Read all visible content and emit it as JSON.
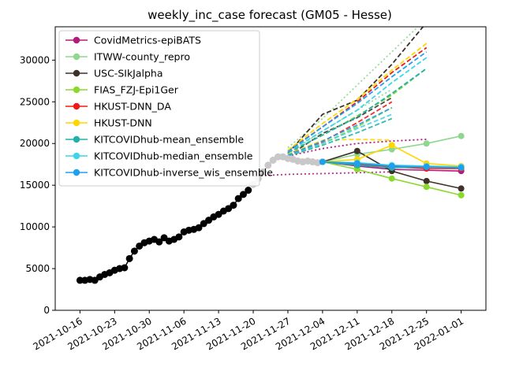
{
  "chart_data": {
    "type": "line",
    "title": "weekly_inc_case forecast (GM05 - Hesse)",
    "xlabel": "",
    "ylabel": "",
    "x_ticks": [
      "2021-10-16",
      "2021-10-23",
      "2021-10-30",
      "2021-11-06",
      "2021-11-13",
      "2021-11-20",
      "2021-11-27",
      "2021-12-04",
      "2021-12-11",
      "2021-12-18",
      "2021-12-25",
      "2022-01-01"
    ],
    "y_ticks": [
      0,
      5000,
      10000,
      15000,
      20000,
      25000,
      30000
    ],
    "xlim": [
      "2021-10-11",
      "2022-01-06"
    ],
    "ylim": [
      0,
      34000
    ],
    "legend_position": "top-left",
    "observed": {
      "color": "#000000",
      "x": [
        "2021-10-16",
        "2021-10-17",
        "2021-10-18",
        "2021-10-19",
        "2021-10-20",
        "2021-10-21",
        "2021-10-22",
        "2021-10-23",
        "2021-10-24",
        "2021-10-25",
        "2021-10-26",
        "2021-10-27",
        "2021-10-28",
        "2021-10-29",
        "2021-10-30",
        "2021-10-31",
        "2021-11-01",
        "2021-11-02",
        "2021-11-03",
        "2021-11-04",
        "2021-11-05",
        "2021-11-06",
        "2021-11-07",
        "2021-11-08",
        "2021-11-09",
        "2021-11-10",
        "2021-11-11",
        "2021-11-12",
        "2021-11-13",
        "2021-11-14",
        "2021-11-15",
        "2021-11-16",
        "2021-11-17",
        "2021-11-18",
        "2021-11-19"
      ],
      "y": [
        3600,
        3600,
        3700,
        3600,
        4000,
        4300,
        4500,
        4800,
        5000,
        5100,
        6200,
        7100,
        7700,
        8100,
        8300,
        8500,
        8200,
        8700,
        8300,
        8500,
        8800,
        9400,
        9600,
        9700,
        9900,
        10400,
        10800,
        11200,
        11500,
        11900,
        12200,
        12600,
        13400,
        13900,
        14400
      ]
    },
    "observed_recent": {
      "color": "#c8c8c8",
      "x": [
        "2021-11-20",
        "2021-11-21",
        "2021-11-22",
        "2021-11-23",
        "2021-11-24",
        "2021-11-25",
        "2021-11-26",
        "2021-11-27",
        "2021-11-28",
        "2021-11-29",
        "2021-11-30",
        "2021-12-01",
        "2021-12-02",
        "2021-12-03"
      ],
      "y": [
        15100,
        15800,
        16600,
        17400,
        18000,
        18400,
        18400,
        18200,
        18100,
        17900,
        17800,
        17900,
        17800,
        17700
      ]
    },
    "series": [
      {
        "name": "CovidMetrics-epiBATS",
        "color": "#b5197d",
        "x": [
          "2021-12-04",
          "2021-12-11",
          "2021-12-18",
          "2022-01-01"
        ],
        "y": [
          17800,
          17300,
          16900,
          16700
        ],
        "upper": {
          "x": [
            "2021-11-27",
            "2021-12-04",
            "2021-12-11",
            "2021-12-18",
            "2021-12-25"
          ],
          "y": [
            18500,
            19400,
            20000,
            20300,
            20500
          ]
        },
        "lower": {
          "x": [
            "2021-11-20",
            "2021-11-27",
            "2021-12-04",
            "2021-12-11",
            "2021-12-18"
          ],
          "y": [
            16100,
            16300,
            16400,
            16500,
            16600
          ]
        }
      },
      {
        "name": "ITWW-county_repro",
        "color": "#8fd68f",
        "x": [
          "2021-12-04",
          "2021-12-11",
          "2021-12-18",
          "2021-12-25",
          "2022-01-01"
        ],
        "y": [
          17800,
          18700,
          19300,
          20000,
          20900
        ],
        "upper": {
          "x": [
            "2021-11-27",
            "2021-12-04",
            "2021-12-11",
            "2021-12-18",
            "2021-12-25"
          ],
          "y": [
            19500,
            23000,
            27000,
            31000,
            35000
          ]
        },
        "lower": {
          "x": [
            "2021-11-27",
            "2021-12-04",
            "2021-12-11",
            "2021-12-18"
          ],
          "y": [
            18800,
            21500,
            24000,
            26500
          ]
        }
      },
      {
        "name": "USC-SIkJalpha",
        "color": "#3d3028",
        "x": [
          "2021-12-04",
          "2021-12-11",
          "2021-12-18",
          "2021-12-25",
          "2022-01-01"
        ],
        "y": [
          17800,
          19100,
          16700,
          15500,
          14600
        ],
        "upper": {
          "x": [
            "2021-11-27",
            "2021-12-04",
            "2021-12-11",
            "2021-12-18",
            "2021-12-25"
          ],
          "y": [
            18800,
            23500,
            25200,
            29500,
            34500
          ]
        },
        "lower": {
          "x": [
            "2021-11-27",
            "2021-12-04",
            "2021-12-11",
            "2021-12-18"
          ],
          "y": [
            18500,
            21200,
            23100,
            25500
          ]
        }
      },
      {
        "name": "FIAS_FZJ-Epi1Ger",
        "color": "#8bd92b",
        "x": [
          "2021-12-04",
          "2021-12-11",
          "2021-12-18",
          "2021-12-25",
          "2022-01-01"
        ],
        "y": [
          17800,
          16900,
          15800,
          14800,
          13800
        ],
        "upper": {
          "x": [
            "2021-11-27",
            "2021-12-04",
            "2021-12-11",
            "2021-12-18",
            "2021-12-25"
          ],
          "y": [
            18900,
            21000,
            23300,
            25800,
            29000
          ]
        },
        "lower": {
          "x": [
            "2021-11-27",
            "2021-12-04",
            "2021-12-11",
            "2021-12-18"
          ],
          "y": [
            18500,
            20000,
            22000,
            24300
          ]
        }
      },
      {
        "name": "HKUST-DNN_DA",
        "color": "#f01a14",
        "x": [
          "2021-12-04",
          "2021-12-11",
          "2021-12-18",
          "2021-12-25",
          "2022-01-01"
        ],
        "y": [
          17800,
          17500,
          17200,
          17000,
          17000
        ],
        "upper": {
          "x": [
            "2021-11-27",
            "2021-12-04",
            "2021-12-11",
            "2021-12-18",
            "2021-12-25"
          ],
          "y": [
            19100,
            22000,
            25000,
            28500,
            31500
          ]
        },
        "lower": {
          "x": [
            "2021-11-27",
            "2021-12-04",
            "2021-12-11",
            "2021-12-18"
          ],
          "y": [
            18600,
            20200,
            22500,
            25000
          ]
        }
      },
      {
        "name": "HKUST-DNN",
        "color": "#ffd700",
        "x": [
          "2021-12-04",
          "2021-12-11",
          "2021-12-18",
          "2021-12-25",
          "2022-01-01"
        ],
        "y": [
          17800,
          18100,
          19800,
          17600,
          17300
        ],
        "upper": {
          "x": [
            "2021-11-27",
            "2021-12-04",
            "2021-12-11",
            "2021-12-18",
            "2021-12-25"
          ],
          "y": [
            19200,
            22400,
            25300,
            28800,
            32000
          ]
        },
        "lower": {
          "x": [
            "2021-11-27",
            "2021-12-04",
            "2021-12-11",
            "2021-12-18"
          ],
          "y": [
            18700,
            20400,
            20500,
            20400
          ]
        }
      },
      {
        "name": "KITCOVIDhub-mean_ensemble",
        "color": "#20b2aa",
        "x": [
          "2021-12-04",
          "2021-12-11",
          "2021-12-18",
          "2021-12-25",
          "2022-01-01"
        ],
        "y": [
          17800,
          17400,
          17100,
          17200,
          17100
        ],
        "upper": {
          "x": [
            "2021-11-27",
            "2021-12-04",
            "2021-12-11",
            "2021-12-18",
            "2021-12-25"
          ],
          "y": [
            18900,
            21000,
            23200,
            26000,
            29000
          ]
        },
        "lower": {
          "x": [
            "2021-11-27",
            "2021-12-04",
            "2021-12-11",
            "2021-12-18"
          ],
          "y": [
            18500,
            19800,
            21300,
            23000
          ]
        }
      },
      {
        "name": "KITCOVIDhub-median_ensemble",
        "color": "#3ed4e8",
        "x": [
          "2021-12-04",
          "2021-12-11",
          "2021-12-18",
          "2021-12-25",
          "2022-01-01"
        ],
        "y": [
          17800,
          17700,
          17400,
          17300,
          17200
        ],
        "upper": {
          "x": [
            "2021-11-27",
            "2021-12-04",
            "2021-12-11",
            "2021-12-18",
            "2021-12-25"
          ],
          "y": [
            19000,
            21500,
            24000,
            27300,
            30300
          ]
        },
        "lower": {
          "x": [
            "2021-11-27",
            "2021-12-04",
            "2021-12-11",
            "2021-12-18"
          ],
          "y": [
            18600,
            20000,
            21800,
            23500
          ]
        }
      },
      {
        "name": "KITCOVIDhub-inverse_wis_ensemble",
        "color": "#1e9ff0",
        "x": [
          "2021-12-04",
          "2021-12-11",
          "2021-12-18",
          "2021-12-25",
          "2022-01-01"
        ],
        "y": [
          17800,
          17600,
          17300,
          17200,
          17100
        ],
        "upper": {
          "x": [
            "2021-11-27",
            "2021-12-04",
            "2021-12-11",
            "2021-12-18",
            "2021-12-25"
          ],
          "y": [
            19000,
            22000,
            24800,
            28000,
            31000
          ]
        },
        "lower": {
          "x": [
            "2021-11-27",
            "2021-12-04",
            "2021-12-11",
            "2021-12-18"
          ],
          "y": [
            18600,
            20300,
            22200,
            24300
          ]
        }
      }
    ]
  }
}
